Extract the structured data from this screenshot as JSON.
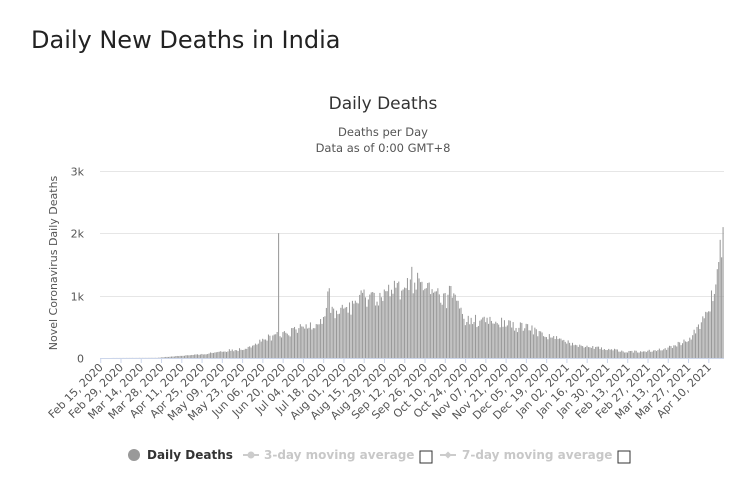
{
  "page": {
    "title": "Daily New Deaths in India"
  },
  "chart_data": {
    "type": "bar",
    "title": "Daily Deaths",
    "subtitle_lines": [
      "Deaths per Day",
      "Data as of 0:00 GMT+8"
    ],
    "ylabel": "Novel Coronavirus Daily Deaths",
    "xlabel": "",
    "ylim": [
      0,
      3000
    ],
    "y_ticks": [
      0,
      1000,
      2000,
      3000
    ],
    "y_tick_labels": [
      "0",
      "1k",
      "2k",
      "3k"
    ],
    "grid": true,
    "legend_position": "bottom",
    "x_start": "2020-02-15",
    "x_end": "2021-04-20",
    "x_tick_labels": [
      "Feb 15, 2020",
      "Feb 29, 2020",
      "Mar 14, 2020",
      "Mar 28, 2020",
      "Apr 11, 2020",
      "Apr 25, 2020",
      "May 09, 2020",
      "May 23, 2020",
      "Jun 06, 2020",
      "Jun 20, 2020",
      "Jul 04, 2020",
      "Jul 18, 2020",
      "Aug 01, 2020",
      "Aug 15, 2020",
      "Aug 29, 2020",
      "Sep 12, 2020",
      "Sep 26, 2020",
      "Oct 10, 2020",
      "Oct 24, 2020",
      "Nov 07, 2020",
      "Nov 21, 2020",
      "Dec 05, 2020",
      "Dec 19, 2020",
      "Jan 02, 2021",
      "Jan 16, 2021",
      "Jan 30, 2021",
      "Feb 13, 2021",
      "Feb 27, 2021",
      "Mar 13, 2021",
      "Mar 27, 2021",
      "Apr 10, 2021"
    ],
    "series": [
      {
        "name": "Daily Deaths",
        "color": "#999999",
        "points": [
          {
            "date": "2020-02-15",
            "value": 0
          },
          {
            "date": "2020-03-25",
            "value": 3
          },
          {
            "date": "2020-04-10",
            "value": 35
          },
          {
            "date": "2020-04-25",
            "value": 55
          },
          {
            "date": "2020-05-09",
            "value": 110
          },
          {
            "date": "2020-05-23",
            "value": 140
          },
          {
            "date": "2020-06-06",
            "value": 280
          },
          {
            "date": "2020-06-16",
            "value": 380
          },
          {
            "date": "2020-06-17",
            "value": 2003
          },
          {
            "date": "2020-06-18",
            "value": 340
          },
          {
            "date": "2020-07-04",
            "value": 480
          },
          {
            "date": "2020-07-18",
            "value": 620
          },
          {
            "date": "2020-07-22",
            "value": 1120
          },
          {
            "date": "2020-07-23",
            "value": 700
          },
          {
            "date": "2020-08-01",
            "value": 780
          },
          {
            "date": "2020-08-15",
            "value": 960
          },
          {
            "date": "2020-08-29",
            "value": 1000
          },
          {
            "date": "2020-09-12",
            "value": 1130
          },
          {
            "date": "2020-09-16",
            "value": 1260
          },
          {
            "date": "2020-09-26",
            "value": 1110
          },
          {
            "date": "2020-10-06",
            "value": 980
          },
          {
            "date": "2020-10-10",
            "value": 920
          },
          {
            "date": "2020-10-14",
            "value": 1050
          },
          {
            "date": "2020-10-24",
            "value": 600
          },
          {
            "date": "2020-11-07",
            "value": 580
          },
          {
            "date": "2020-11-21",
            "value": 540
          },
          {
            "date": "2020-12-05",
            "value": 480
          },
          {
            "date": "2020-12-19",
            "value": 360
          },
          {
            "date": "2021-01-02",
            "value": 250
          },
          {
            "date": "2021-01-16",
            "value": 190
          },
          {
            "date": "2021-01-30",
            "value": 140
          },
          {
            "date": "2021-02-13",
            "value": 100
          },
          {
            "date": "2021-02-27",
            "value": 110
          },
          {
            "date": "2021-03-13",
            "value": 160
          },
          {
            "date": "2021-03-27",
            "value": 300
          },
          {
            "date": "2021-04-05",
            "value": 520
          },
          {
            "date": "2021-04-10",
            "value": 790
          },
          {
            "date": "2021-04-15",
            "value": 1180
          },
          {
            "date": "2021-04-20",
            "value": 2100
          }
        ]
      },
      {
        "name": "3-day moving average",
        "color": "#cccccc",
        "visible": false
      },
      {
        "name": "7-day moving average",
        "color": "#cccccc",
        "visible": false
      }
    ]
  }
}
